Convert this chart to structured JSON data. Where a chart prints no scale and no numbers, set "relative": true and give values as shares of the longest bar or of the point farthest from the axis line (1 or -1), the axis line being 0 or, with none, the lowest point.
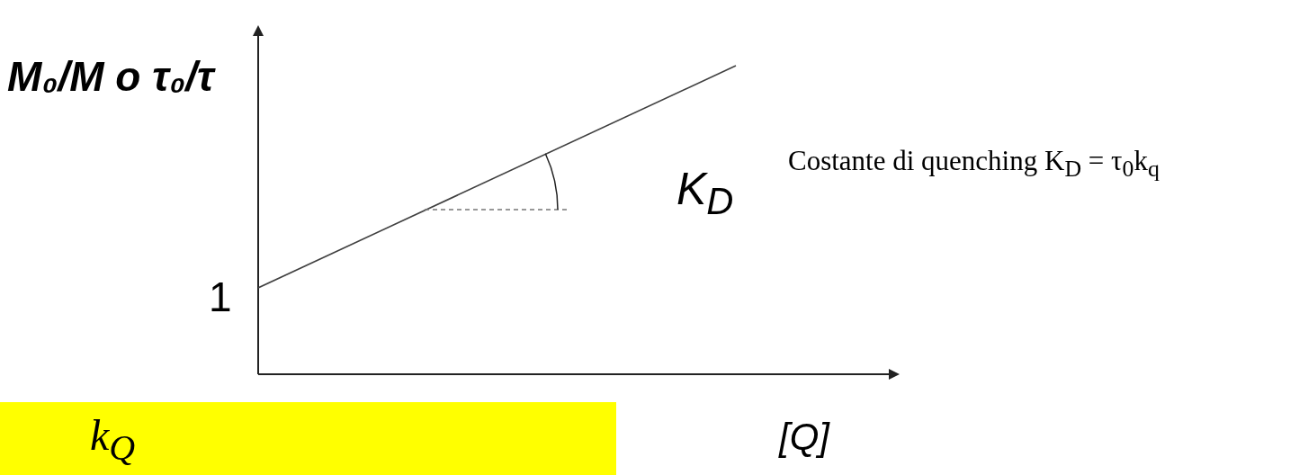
{
  "chart_data": {
    "type": "line",
    "ylabel": "M₀/M o τ₀/τ",
    "xlabel": "[Q]",
    "categories": [
      null,
      null
    ],
    "values": [
      0.28,
      1
    ],
    "color": "#404040",
    "relative": true,
    "marker": "none",
    "annotations": [
      "1",
      "K$_{D}$",
      "Costante di quenching K$_{D}$ = τ$_{0}$k$_{q}$",
      "k$_{Q}$"
    ]
  }
}
